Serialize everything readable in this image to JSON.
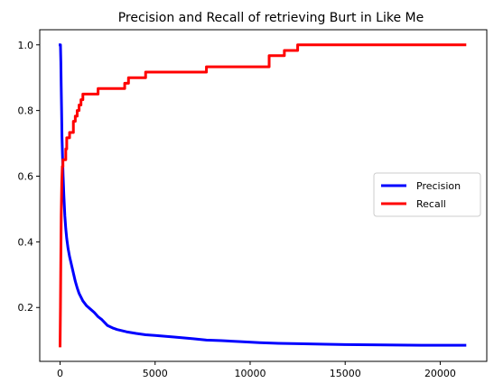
{
  "chart_data": {
    "type": "line",
    "title": "Precision and Recall of retrieving Burt in Like Me",
    "xlabel": "",
    "ylabel": "",
    "xlim": [
      -1070,
      22450
    ],
    "ylim": [
      0.036,
      1.046
    ],
    "x_ticks": [
      0,
      5000,
      10000,
      15000,
      20000
    ],
    "x_tick_labels": [
      "0",
      "5000",
      "10000",
      "15000",
      "20000"
    ],
    "y_ticks": [
      0.2,
      0.4,
      0.6,
      0.8,
      1.0
    ],
    "y_tick_labels": [
      "0.2",
      "0.4",
      "0.6",
      "0.8",
      "1.0"
    ],
    "grid": false,
    "legend_position": "center-right",
    "series": [
      {
        "name": "Precision",
        "color": "#0000ff",
        "points": [
          [
            0,
            1.0
          ],
          [
            20,
            1.0
          ],
          [
            40,
            0.95
          ],
          [
            60,
            0.87
          ],
          [
            80,
            0.8
          ],
          [
            100,
            0.72
          ],
          [
            130,
            0.66
          ],
          [
            160,
            0.6
          ],
          [
            200,
            0.54
          ],
          [
            250,
            0.48
          ],
          [
            300,
            0.44
          ],
          [
            350,
            0.41
          ],
          [
            420,
            0.38
          ],
          [
            500,
            0.355
          ],
          [
            600,
            0.33
          ],
          [
            700,
            0.305
          ],
          [
            800,
            0.28
          ],
          [
            900,
            0.26
          ],
          [
            1000,
            0.243
          ],
          [
            1200,
            0.22
          ],
          [
            1400,
            0.205
          ],
          [
            1600,
            0.195
          ],
          [
            1800,
            0.185
          ],
          [
            2000,
            0.172
          ],
          [
            2200,
            0.163
          ],
          [
            2500,
            0.145
          ],
          [
            2800,
            0.137
          ],
          [
            3000,
            0.133
          ],
          [
            3500,
            0.126
          ],
          [
            4000,
            0.121
          ],
          [
            4500,
            0.117
          ],
          [
            5000,
            0.115
          ],
          [
            6000,
            0.11
          ],
          [
            7000,
            0.105
          ],
          [
            7700,
            0.101
          ],
          [
            8500,
            0.099
          ],
          [
            9500,
            0.096
          ],
          [
            10500,
            0.093
          ],
          [
            11500,
            0.091
          ],
          [
            12500,
            0.09
          ],
          [
            14000,
            0.088
          ],
          [
            15000,
            0.087
          ],
          [
            17000,
            0.086
          ],
          [
            19000,
            0.085
          ],
          [
            21300,
            0.085
          ]
        ]
      },
      {
        "name": "Recall",
        "color": "#ff0000",
        "points": [
          [
            0,
            0.083
          ],
          [
            20,
            0.2
          ],
          [
            40,
            0.35
          ],
          [
            60,
            0.48
          ],
          [
            90,
            0.58
          ],
          [
            120,
            0.63
          ],
          [
            150,
            0.63
          ],
          [
            150,
            0.65
          ],
          [
            300,
            0.65
          ],
          [
            300,
            0.683
          ],
          [
            350,
            0.683
          ],
          [
            350,
            0.717
          ],
          [
            500,
            0.717
          ],
          [
            500,
            0.733
          ],
          [
            700,
            0.733
          ],
          [
            700,
            0.767
          ],
          [
            800,
            0.767
          ],
          [
            800,
            0.783
          ],
          [
            900,
            0.783
          ],
          [
            900,
            0.8
          ],
          [
            1000,
            0.8
          ],
          [
            1000,
            0.817
          ],
          [
            1100,
            0.817
          ],
          [
            1100,
            0.833
          ],
          [
            1200,
            0.833
          ],
          [
            1200,
            0.85
          ],
          [
            2000,
            0.85
          ],
          [
            2000,
            0.867
          ],
          [
            3400,
            0.867
          ],
          [
            3400,
            0.883
          ],
          [
            3600,
            0.883
          ],
          [
            3600,
            0.9
          ],
          [
            4500,
            0.9
          ],
          [
            4500,
            0.917
          ],
          [
            7700,
            0.917
          ],
          [
            7700,
            0.933
          ],
          [
            11000,
            0.933
          ],
          [
            11000,
            0.967
          ],
          [
            11800,
            0.967
          ],
          [
            11800,
            0.983
          ],
          [
            12500,
            0.983
          ],
          [
            12500,
            1.0
          ],
          [
            21300,
            1.0
          ]
        ]
      }
    ]
  }
}
